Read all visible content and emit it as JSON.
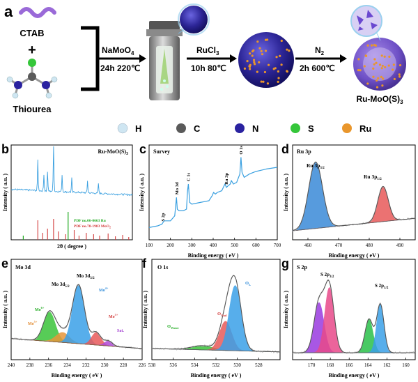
{
  "panel_a": {
    "label": "a",
    "reagents": [
      "CTAB",
      "+",
      "Thiourea"
    ],
    "step1": {
      "reagent": "NaMoO",
      "reagent_sub": "4",
      "condition": "24h 220℃"
    },
    "step2": {
      "reagent": "RuCl",
      "reagent_sub": "3",
      "condition": "10h 80℃"
    },
    "step3": {
      "reagent": "N",
      "reagent_sub": "2",
      "condition": "2h 600℃"
    },
    "product": {
      "text": "Ru-MoO(S)",
      "sub": "3"
    },
    "legend": [
      {
        "label": "H",
        "color": "#cfe6f2"
      },
      {
        "label": "C",
        "color": "#5a5a5a"
      },
      {
        "label": "N",
        "color": "#2a22a0"
      },
      {
        "label": "S",
        "color": "#35c63a"
      },
      {
        "label": "Ru",
        "color": "#e9962c"
      }
    ]
  },
  "chart_data": [
    {
      "panel": "b",
      "type": "line",
      "title": "Ru-MoO(S)3",
      "xlabel": "2θ ( degree )",
      "ylabel": "Intensity ( a.u. )",
      "pdf_refs": [
        {
          "text": "PDF no.06-0663 Ru",
          "color": "#22aa22"
        },
        {
          "text": "PDF no.78-1983 MoO",
          "color": "#d23a3a"
        }
      ],
      "series": [
        {
          "name": "Ru-MoO(S)3",
          "color": "#3aa0e0"
        }
      ]
    },
    {
      "panel": "c",
      "type": "line",
      "title": "Survey",
      "xlabel": "Binding energy ( eV )",
      "ylabel": "Intensity ( a.u. )",
      "xlim": [
        100,
        700
      ],
      "x_ticks": [
        "100",
        "200",
        "300",
        "400",
        "500",
        "600",
        "700"
      ],
      "x": [
        100,
        140,
        160,
        170,
        200,
        220,
        228,
        232,
        240,
        260,
        275,
        280,
        284,
        290,
        300,
        340,
        380,
        395,
        402,
        410,
        420,
        440,
        455,
        462,
        470,
        480,
        485,
        495,
        510,
        525,
        530,
        535,
        545,
        570,
        600,
        650,
        700
      ],
      "y": [
        0.08,
        0.1,
        0.12,
        0.16,
        0.16,
        0.22,
        0.44,
        0.3,
        0.28,
        0.28,
        0.3,
        0.52,
        0.6,
        0.38,
        0.36,
        0.38,
        0.4,
        0.46,
        0.5,
        0.48,
        0.5,
        0.52,
        0.6,
        0.56,
        0.58,
        0.6,
        0.64,
        0.6,
        0.62,
        0.72,
        0.92,
        0.74,
        0.68,
        0.72,
        0.75,
        0.78,
        0.8
      ],
      "annotations": [
        {
          "text": "S 2p",
          "x": 165
        },
        {
          "text": "Mo 3d",
          "x": 230
        },
        {
          "text": "C 1s",
          "x": 284
        },
        {
          "text": "Ru 3p",
          "x": 462
        },
        {
          "text": "O 1s",
          "x": 530
        }
      ]
    },
    {
      "panel": "d",
      "type": "area",
      "title": "Ru 3p",
      "xlabel": "Binding energy ( eV )",
      "ylabel": "Intensity ( a.u. )",
      "xlim": [
        455,
        495
      ],
      "x_ticks": [
        "460",
        "470",
        "480",
        "490"
      ],
      "series": [
        {
          "name": "Ru 3p3/2",
          "center": 462.5,
          "color": "#3a8ad8"
        },
        {
          "name": "Ru 3p1/2",
          "center": 484.5,
          "color": "#e85a5a"
        }
      ],
      "annotations": [
        {
          "text": "Ru 3p",
          "sub": "3/2"
        },
        {
          "text": "Ru 3p",
          "sub": "1/2"
        }
      ]
    },
    {
      "panel": "e",
      "type": "area",
      "title": "Mo 3d",
      "xlabel": "Binding energy ( eV )",
      "ylabel": "Intensity ( a.u. )",
      "xlim": [
        240,
        226
      ],
      "x_ticks": [
        "240",
        "238",
        "236",
        "234",
        "232",
        "230",
        "228",
        "226"
      ],
      "series": [
        {
          "name": "Mo6+",
          "center": 235.9,
          "color": "#3ac43a"
        },
        {
          "name": "Mo5+",
          "center": 234.5,
          "color": "#e8963a"
        },
        {
          "name": "Mo4+",
          "center": 232.8,
          "color": "#3aa0e8"
        },
        {
          "name": "Mo3+",
          "center": 230.9,
          "color": "#e85a5a"
        },
        {
          "name": "Sat.",
          "center": 229.6,
          "color": "#b04ad8"
        }
      ],
      "annotations": [
        {
          "text": "Mo 3d",
          "sub": "3/2"
        },
        {
          "text": "Mo 3d",
          "sub": "5/2"
        },
        {
          "text": "Mo",
          "sup": "6+"
        },
        {
          "text": "Mo",
          "sup": "5+"
        },
        {
          "text": "Mo",
          "sup": "4+"
        },
        {
          "text": "Mo",
          "sup": "3+"
        },
        {
          "text": "Sat."
        }
      ]
    },
    {
      "panel": "f",
      "type": "area",
      "title": "O 1s",
      "xlabel": "Binding energy ( eV )",
      "ylabel": "Intensity ( a.u. )",
      "xlim": [
        538,
        526
      ],
      "x_ticks": [
        "538",
        "536",
        "534",
        "532",
        "530",
        "528"
      ],
      "series": [
        {
          "name": "O_Water",
          "center": 533.3,
          "color": "#3ac43a"
        },
        {
          "name": "O_Oad",
          "center": 531.1,
          "color": "#e85a5a"
        },
        {
          "name": "O_L",
          "center": 530.2,
          "color": "#3aa0e8"
        }
      ],
      "annotations": [
        {
          "text": "O",
          "sub": "Water"
        },
        {
          "text": "O",
          "sub": "Oad"
        },
        {
          "text": "O",
          "sub": "L"
        }
      ]
    },
    {
      "panel": "g",
      "type": "area",
      "title": "S 2p",
      "xlabel": "Binding energy ( eV )",
      "ylabel": "Intensity ( a.u. )",
      "xlim": [
        172,
        159
      ],
      "x_ticks": [
        "170",
        "168",
        "166",
        "164",
        "162",
        "160"
      ],
      "series": [
        {
          "name": "S 2p3/2 (high)",
          "center": 169.2,
          "color": "#9a3ae0"
        },
        {
          "name": "S 2p1/2 (high)",
          "center": 168.1,
          "color": "#e84a8a"
        },
        {
          "name": "S 2p3/2",
          "center": 163.9,
          "color": "#2ac04a"
        },
        {
          "name": "S 2p1/2",
          "center": 162.7,
          "color": "#3aa0e8"
        }
      ],
      "annotations": [
        {
          "text": "S 2p",
          "sub": "3/2"
        },
        {
          "text": "S 2p",
          "sub": "1/2"
        }
      ]
    }
  ]
}
